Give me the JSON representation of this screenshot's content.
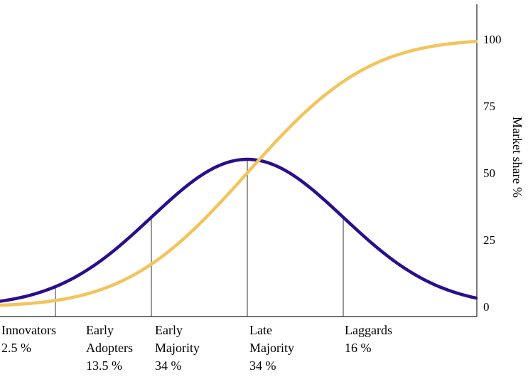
{
  "chart_data": {
    "type": "line",
    "title": "",
    "xlabel": "",
    "ylabel": "Market share %",
    "ylim": [
      0,
      100
    ],
    "y_ticks": [
      "0",
      "25",
      "50",
      "75",
      "100"
    ],
    "y_axis_position": "right",
    "grid": false,
    "series": [
      {
        "color": "#F2C45C",
        "kind": "cumulative adoption (S-curve)",
        "values_at_boundaries": [
          0,
          2.5,
          16,
          50,
          84,
          100
        ]
      },
      {
        "color": "#2A0E8C",
        "kind": "adoption rate (bell curve)"
      }
    ],
    "boundaries_sd": [
      -2,
      -1,
      0,
      1
    ],
    "segments": [
      {
        "lines": [
          "Innovators",
          "2.5 %"
        ],
        "share": 2.5
      },
      {
        "lines": [
          "Early",
          "Adopters",
          "13.5 %"
        ],
        "share": 13.5
      },
      {
        "lines": [
          "Early",
          "Majority",
          "34 %"
        ],
        "share": 34
      },
      {
        "lines": [
          "Late",
          "Majority",
          "34 %"
        ],
        "share": 34
      },
      {
        "lines": [
          "Laggards",
          "16 %"
        ],
        "share": 16
      }
    ]
  }
}
